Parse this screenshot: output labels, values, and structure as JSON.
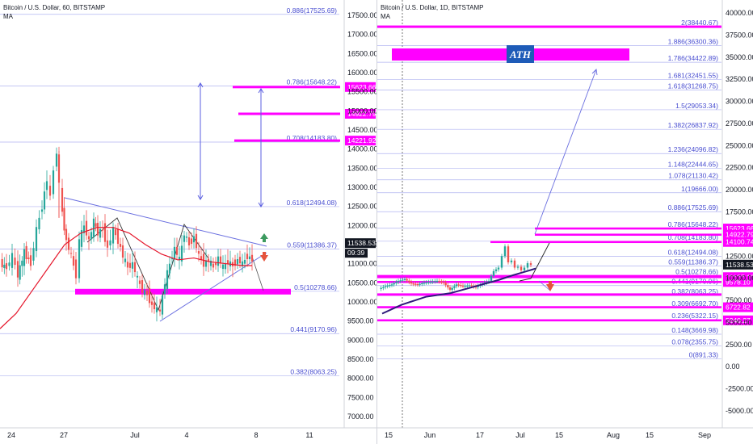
{
  "left": {
    "title": "Bitcoin / U.S. Dollar, 60, BITSTAMP",
    "indicator": "MA",
    "price_ticks": [
      "17500.00",
      "17000.00",
      "16500.00",
      "16000.00",
      "15500.00",
      "15000.00",
      "14500.00",
      "14000.00",
      "13500.00",
      "13000.00",
      "12500.00",
      "12000.00",
      "11500.00",
      "11000.00",
      "10500.00",
      "10000.00",
      "9500.00",
      "9000.00",
      "8500.00",
      "8000.00",
      "7500.00",
      "7000.00"
    ],
    "time_ticks": [
      "24",
      "27",
      "Jul",
      "4",
      "8",
      "11"
    ],
    "fib_labels": [
      "0.886(17525.69)",
      "0.786(15648.22)",
      "0.708(14183.80)",
      "0.618(12494.08)",
      "0.559(11386.37)",
      "0.5(10278.66)",
      "0.441(9170.96)",
      "0.382(8063.25)"
    ],
    "zone_tags": [
      "15623.66",
      "14922.79",
      "14221.92"
    ],
    "current_price": "11538.53",
    "countdown": "09:39"
  },
  "right": {
    "title": "Bitcoin / U.S. Dollar, 1D, BITSTAMP",
    "indicator": "MA",
    "price_ticks": [
      "40000.00",
      "37500.00",
      "35000.00",
      "32500.00",
      "30000.00",
      "27500.00",
      "25000.00",
      "22500.00",
      "20000.00",
      "17500.00",
      "12500.00",
      "10000.00",
      "7500.00",
      "5000.00",
      "2500.00",
      "0.00",
      "-2500.00",
      "-5000.00"
    ],
    "time_ticks": [
      "15",
      "Jun",
      "17",
      "Jul",
      "15",
      "Aug",
      "15",
      "Sep"
    ],
    "fib_labels": [
      "2(38440.67)",
      "1.886(36300.36)",
      "1.786(34422.89)",
      "1.681(32451.55)",
      "1.618(31268.75)",
      "1.5(29053.34)",
      "1.382(26837.92)",
      "1.236(24096.82)",
      "1.148(22444.65)",
      "1.078(21130.42)",
      "1(19666.00)",
      "0.886(17525.69)",
      "0.786(15648.22)",
      "0.708(14183.80)",
      "0.618(12494.08)",
      "0.559(11386.37)",
      "0.5(10278.66)",
      "0.441(9170.96)",
      "0.382(8063.25)",
      "0.309(6692.70)",
      "0.236(5322.15)",
      "0.148(3669.98)",
      "0.078(2355.75)",
      "0(891.33)"
    ],
    "zone_tags": [
      "15623.66",
      "14922.79",
      "14100.74",
      "10127.19",
      "9578.10",
      "6722.82",
      "5240.27"
    ],
    "current_price": "11538.53",
    "ath_label": "ATH"
  },
  "colors": {
    "magenta": "#ff00ff",
    "fib_line": "#7b80e6",
    "fib_text": "#4a4fd1",
    "bull": "#26a69a",
    "bear": "#ef5350",
    "ma_red": "#e5162b",
    "ma_purple": "#2e1a7a",
    "price_tag": "#131722",
    "arrow_up": "#3c9a5f",
    "arrow_down": "#e5533c",
    "ath_box": "#1e5bb8"
  },
  "chart_data": [
    {
      "type": "candlestick",
      "title": "Bitcoin / U.S. Dollar, 60, BITSTAMP",
      "ylim": [
        6700,
        18300
      ],
      "x": [
        "24",
        "27",
        "Jul",
        "4",
        "8",
        "11"
      ],
      "fib_levels": [
        {
          "ratio": 0.886,
          "price": 17525.69
        },
        {
          "ratio": 0.786,
          "price": 15648.22
        },
        {
          "ratio": 0.708,
          "price": 14183.8
        },
        {
          "ratio": 0.618,
          "price": 12494.08
        },
        {
          "ratio": 0.559,
          "price": 11386.37
        },
        {
          "ratio": 0.5,
          "price": 10278.66
        },
        {
          "ratio": 0.441,
          "price": 9170.96
        },
        {
          "ratio": 0.382,
          "price": 8063.25
        }
      ],
      "zones": [
        15623.66,
        14922.79,
        14221.92,
        10278.66
      ],
      "last_price": 11538.53
    },
    {
      "type": "candlestick",
      "title": "Bitcoin / U.S. Dollar, 1D, BITSTAMP",
      "ylim": [
        -6000,
        41000
      ],
      "x": [
        "15",
        "Jun",
        "17",
        "Jul",
        "15",
        "Aug",
        "15",
        "Sep"
      ],
      "fib_levels": [
        {
          "ratio": 2,
          "price": 38440.67
        },
        {
          "ratio": 1.886,
          "price": 36300.36
        },
        {
          "ratio": 1.786,
          "price": 34422.89
        },
        {
          "ratio": 1.681,
          "price": 32451.55
        },
        {
          "ratio": 1.618,
          "price": 31268.75
        },
        {
          "ratio": 1.5,
          "price": 29053.34
        },
        {
          "ratio": 1.382,
          "price": 26837.92
        },
        {
          "ratio": 1.236,
          "price": 24096.82
        },
        {
          "ratio": 1.148,
          "price": 22444.65
        },
        {
          "ratio": 1.078,
          "price": 21130.42
        },
        {
          "ratio": 1,
          "price": 19666.0
        },
        {
          "ratio": 0.886,
          "price": 17525.69
        },
        {
          "ratio": 0.786,
          "price": 15648.22
        },
        {
          "ratio": 0.708,
          "price": 14183.8
        },
        {
          "ratio": 0.618,
          "price": 12494.08
        },
        {
          "ratio": 0.559,
          "price": 11386.37
        },
        {
          "ratio": 0.5,
          "price": 10278.66
        },
        {
          "ratio": 0.441,
          "price": 9170.96
        },
        {
          "ratio": 0.382,
          "price": 8063.25
        },
        {
          "ratio": 0.309,
          "price": 6692.7
        },
        {
          "ratio": 0.236,
          "price": 5322.15
        },
        {
          "ratio": 0.148,
          "price": 3669.98
        },
        {
          "ratio": 0.078,
          "price": 2355.75
        },
        {
          "ratio": 0,
          "price": 891.33
        }
      ],
      "zones": [
        15623.66,
        14922.79,
        14100.74,
        10127.19,
        9578.1,
        6722.82,
        5240.27
      ],
      "last_price": 11538.53
    }
  ]
}
